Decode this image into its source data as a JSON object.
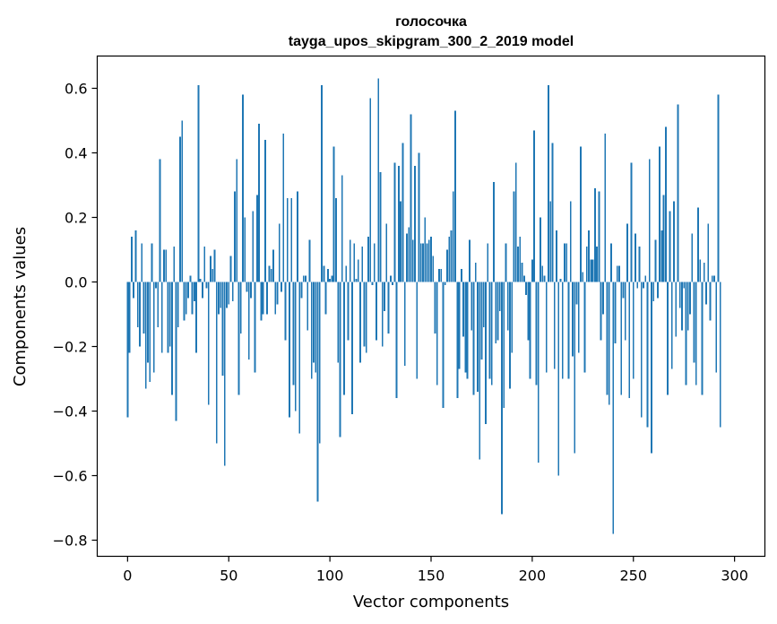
{
  "chart_data": {
    "type": "bar",
    "title": "голосочка",
    "subtitle": "tayga_upos_skipgram_300_2_2019 model",
    "xlabel": "Vector components",
    "ylabel": "Components values",
    "xlim": [
      -15,
      315
    ],
    "ylim": [
      -0.85,
      0.7
    ],
    "xticks": [
      0,
      50,
      100,
      150,
      200,
      250,
      300
    ],
    "yticks": [
      -0.8,
      -0.6,
      -0.4,
      -0.2,
      0.0,
      0.2,
      0.4,
      0.6
    ],
    "ytick_labels": [
      "−0.8",
      "−0.6",
      "−0.4",
      "−0.2",
      "0.0",
      "0.2",
      "0.4",
      "0.6"
    ],
    "grid": false,
    "bar_color": "#1f77b4",
    "values": [
      -0.42,
      -0.22,
      0.14,
      -0.05,
      0.16,
      -0.14,
      -0.2,
      0.12,
      -0.16,
      -0.33,
      -0.25,
      -0.31,
      0.12,
      -0.28,
      -0.02,
      -0.14,
      0.38,
      -0.22,
      0.1,
      0.1,
      -0.22,
      -0.2,
      -0.35,
      0.11,
      -0.43,
      -0.14,
      0.45,
      0.5,
      -0.12,
      -0.1,
      -0.05,
      0.02,
      -0.1,
      -0.06,
      -0.22,
      0.61,
      0.01,
      -0.05,
      0.11,
      -0.02,
      -0.38,
      0.08,
      0.04,
      0.1,
      -0.5,
      -0.1,
      -0.08,
      -0.29,
      -0.57,
      -0.08,
      -0.07,
      0.08,
      -0.06,
      0.28,
      0.38,
      -0.35,
      -0.16,
      0.58,
      0.2,
      -0.03,
      -0.24,
      -0.05,
      0.22,
      -0.28,
      0.27,
      0.49,
      -0.12,
      -0.1,
      0.44,
      -0.1,
      0.05,
      0.04,
      0.1,
      -0.1,
      -0.07,
      0.18,
      -0.03,
      0.46,
      -0.18,
      0.26,
      -0.42,
      0.26,
      -0.32,
      -0.4,
      0.28,
      -0.47,
      -0.05,
      0.02,
      0.02,
      -0.15,
      0.13,
      -0.3,
      -0.25,
      -0.28,
      -0.68,
      -0.5,
      0.61,
      0.05,
      -0.1,
      0.04,
      0.01,
      0.02,
      0.42,
      0.26,
      -0.25,
      -0.48,
      0.33,
      -0.35,
      0.05,
      -0.18,
      0.13,
      -0.41,
      0.12,
      0.01,
      0.07,
      -0.25,
      0.11,
      -0.2,
      -0.22,
      0.14,
      0.57,
      -0.01,
      0.12,
      -0.18,
      0.63,
      0.34,
      -0.2,
      -0.09,
      0.18,
      -0.16,
      0.02,
      -0.01,
      0.37,
      -0.36,
      0.36,
      0.25,
      0.43,
      -0.26,
      0.15,
      0.17,
      0.52,
      0.13,
      0.36,
      -0.3,
      0.4,
      0.12,
      0.12,
      0.2,
      0.12,
      0.13,
      0.14,
      0.08,
      -0.16,
      -0.32,
      0.04,
      0.04,
      -0.39,
      -0.01,
      0.1,
      0.14,
      0.16,
      0.28,
      0.53,
      -0.36,
      -0.27,
      0.04,
      -0.17,
      -0.28,
      -0.3,
      0.13,
      -0.15,
      -0.35,
      0.06,
      -0.34,
      -0.55,
      -0.24,
      -0.14,
      -0.44,
      0.12,
      -0.3,
      -0.32,
      0.31,
      -0.19,
      -0.18,
      -0.09,
      -0.72,
      -0.39,
      0.12,
      -0.15,
      -0.33,
      -0.22,
      0.28,
      0.37,
      0.11,
      0.14,
      0.06,
      0.02,
      -0.04,
      -0.18,
      -0.3,
      0.07,
      0.47,
      -0.32,
      -0.56,
      0.2,
      0.05,
      0.02,
      -0.28,
      0.61,
      0.25,
      0.43,
      -0.27,
      0.16,
      -0.6,
      0.01,
      -0.3,
      0.12,
      0.12,
      -0.3,
      0.25,
      -0.23,
      -0.53,
      -0.07,
      -0.22,
      0.42,
      0.03,
      -0.28,
      0.11,
      0.16,
      0.07,
      0.07,
      0.29,
      0.11,
      0.28,
      -0.18,
      -0.1,
      0.46,
      -0.35,
      -0.38,
      0.12,
      -0.78,
      -0.19,
      0.05,
      0.05,
      -0.35,
      -0.05,
      -0.18,
      0.18,
      -0.36,
      0.37,
      -0.3,
      0.15,
      -0.02,
      0.11,
      -0.42,
      -0.02,
      0.02,
      -0.45,
      0.38,
      -0.53,
      -0.06,
      0.13,
      -0.05,
      0.42,
      0.16,
      0.27,
      0.48,
      -0.35,
      0.22,
      -0.27,
      0.25,
      -0.17,
      0.55,
      -0.08,
      -0.15,
      -0.02,
      -0.32,
      -0.15,
      -0.1,
      0.15,
      -0.25,
      -0.32,
      0.23,
      0.07,
      -0.35,
      0.06,
      -0.07,
      0.18,
      -0.12,
      0.02,
      0.02,
      -0.28,
      0.58,
      -0.45
    ]
  }
}
